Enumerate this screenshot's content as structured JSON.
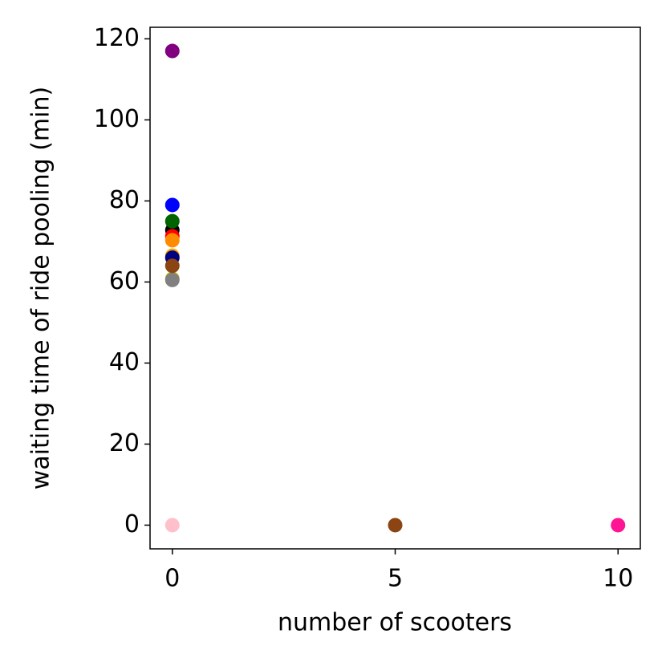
{
  "chart_data": {
    "type": "scatter",
    "xlabel": "number of scooters",
    "ylabel": "waiting time of ride pooling (min)",
    "x": [
      0,
      0,
      0,
      0,
      0,
      0,
      0,
      0,
      0,
      0,
      0,
      0,
      5,
      10
    ],
    "y": [
      60.8,
      60.5,
      66.5,
      66,
      64,
      72.8,
      71.3,
      70.3,
      75,
      79,
      117,
      0,
      0,
      0
    ],
    "colors": [
      "#bdb000",
      "#808080",
      "#ffa500",
      "#000080",
      "#8b4513",
      "#000000",
      "#ff0000",
      "#ff8c00",
      "#006400",
      "#0000ff",
      "#800080",
      "#ffc0cb",
      "#8b4513",
      "#ff1493"
    ],
    "xlim": [
      -0.5,
      10.5
    ],
    "xticks": [
      0,
      5,
      10
    ],
    "ylim": [
      -5.85,
      122.85
    ],
    "yticks": [
      0,
      20,
      40,
      60,
      80,
      100,
      120
    ]
  }
}
